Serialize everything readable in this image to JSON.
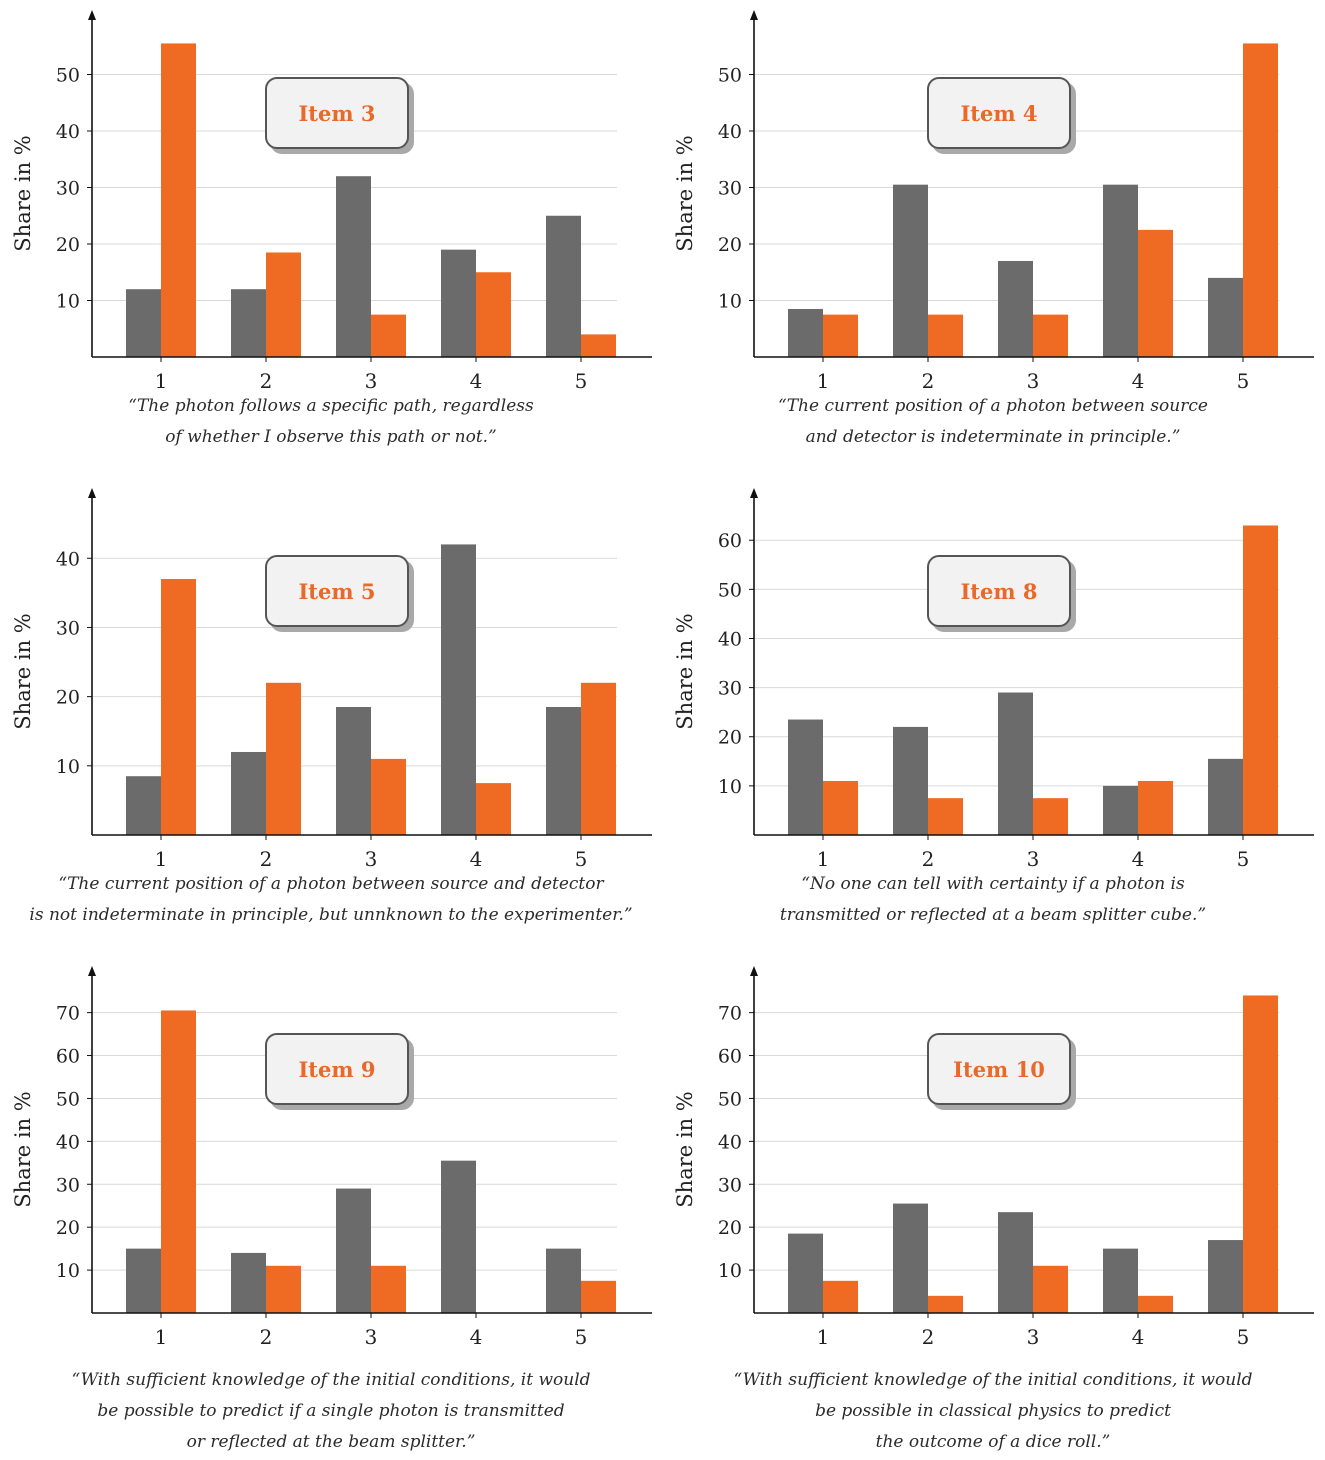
{
  "colors": {
    "gray": "#6b6b6b",
    "orange": "#ef6a23",
    "axis": "#111111",
    "grid": "#d9d9d9",
    "item_text": "#e9692a"
  },
  "ylabel": "Share in %",
  "chart_data": [
    {
      "type": "bar",
      "title": "Item 3",
      "categories": [
        "1",
        "2",
        "3",
        "4",
        "5"
      ],
      "series": [
        {
          "name": "gray",
          "values": [
            12,
            12,
            32,
            19,
            25
          ]
        },
        {
          "name": "orange",
          "values": [
            55.5,
            18.5,
            7.5,
            15,
            4
          ]
        }
      ],
      "ylabel": "Share in %",
      "yticks": [
        10,
        20,
        30,
        40,
        50
      ],
      "ylim": [
        0,
        60
      ],
      "caption": [
        "“The photon follows a specific path, regardless",
        "of whether I observe this path or not.”"
      ]
    },
    {
      "type": "bar",
      "title": "Item 4",
      "categories": [
        "1",
        "2",
        "3",
        "4",
        "5"
      ],
      "series": [
        {
          "name": "gray",
          "values": [
            8.5,
            30.5,
            17,
            30.5,
            14
          ]
        },
        {
          "name": "orange",
          "values": [
            7.5,
            7.5,
            7.5,
            22.5,
            55.5
          ]
        }
      ],
      "ylabel": "Share in %",
      "yticks": [
        10,
        20,
        30,
        40,
        50
      ],
      "ylim": [
        0,
        60
      ],
      "caption": [
        "“The current position of a photon between source",
        "and detector is indeterminate in principle.”"
      ]
    },
    {
      "type": "bar",
      "title": "Item 5",
      "categories": [
        "1",
        "2",
        "3",
        "4",
        "5"
      ],
      "series": [
        {
          "name": "gray",
          "values": [
            8.5,
            12,
            18.5,
            42,
            18.5
          ]
        },
        {
          "name": "orange",
          "values": [
            37,
            22,
            11,
            7.5,
            22
          ]
        }
      ],
      "ylabel": "Share in %",
      "yticks": [
        10,
        20,
        30,
        40
      ],
      "ylim": [
        0,
        49
      ],
      "caption": [
        "“The current position of a photon between source and detector",
        "is not indeterminate in principle, but unnknown to the experimenter.”"
      ]
    },
    {
      "type": "bar",
      "title": "Item 8",
      "categories": [
        "1",
        "2",
        "3",
        "4",
        "5"
      ],
      "series": [
        {
          "name": "gray",
          "values": [
            23.5,
            22,
            29,
            10,
            15.5
          ]
        },
        {
          "name": "orange",
          "values": [
            11,
            7.5,
            7.5,
            11,
            63
          ]
        }
      ],
      "ylabel": "Share in %",
      "yticks": [
        10,
        20,
        30,
        40,
        50,
        60
      ],
      "ylim": [
        0,
        69
      ],
      "caption": [
        "“No one can tell with certainty if a photon is",
        "transmitted or reflected at a beam splitter cube.”"
      ]
    },
    {
      "type": "bar",
      "title": "Item 9",
      "categories": [
        "1",
        "2",
        "3",
        "4",
        "5"
      ],
      "series": [
        {
          "name": "gray",
          "values": [
            15,
            14,
            29,
            35.5,
            15
          ]
        },
        {
          "name": "orange",
          "values": [
            70.5,
            11,
            11,
            0,
            7.5
          ]
        }
      ],
      "ylabel": "Share in %",
      "yticks": [
        10,
        20,
        30,
        40,
        50,
        60,
        70
      ],
      "ylim": [
        0,
        79
      ],
      "caption": [
        "“With sufficient knowledge of the initial conditions, it would",
        "be possible to predict if a single photon is transmitted",
        "or reflected at the beam splitter.”"
      ]
    },
    {
      "type": "bar",
      "title": "Item 10",
      "categories": [
        "1",
        "2",
        "3",
        "4",
        "5"
      ],
      "series": [
        {
          "name": "gray",
          "values": [
            18.5,
            25.5,
            23.5,
            15,
            17
          ]
        },
        {
          "name": "orange",
          "values": [
            7.5,
            4,
            11,
            4,
            74
          ]
        }
      ],
      "ylabel": "Share in %",
      "yticks": [
        10,
        20,
        30,
        40,
        50,
        60,
        70
      ],
      "ylim": [
        0,
        79
      ],
      "caption": [
        "“With sufficient knowledge of the initial conditions, it would",
        "be possible in classical physics to predict",
        "the outcome of a dice roll.”"
      ]
    }
  ]
}
